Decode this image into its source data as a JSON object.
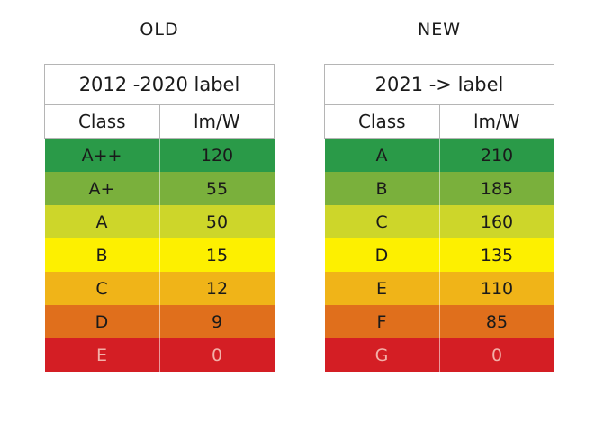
{
  "old": {
    "heading": "OLD",
    "table_title": "2012 -2020 label",
    "headers": [
      "Class",
      "lm/W"
    ],
    "rows": [
      {
        "class": "A++",
        "value": "120",
        "color": "#2a9a48",
        "text_color": "#1a1a1a"
      },
      {
        "class": "A+",
        "value": "55",
        "color": "#7ab03c",
        "text_color": "#1a1a1a"
      },
      {
        "class": "A",
        "value": "50",
        "color": "#cdd62a",
        "text_color": "#1a1a1a"
      },
      {
        "class": "B",
        "value": "15",
        "color": "#fdf000",
        "text_color": "#1a1a1a"
      },
      {
        "class": "C",
        "value": "12",
        "color": "#f0b418",
        "text_color": "#1a1a1a"
      },
      {
        "class": "D",
        "value": "9",
        "color": "#e06f1c",
        "text_color": "#1a1a1a"
      },
      {
        "class": "E",
        "value": "0",
        "color": "#d41e24",
        "text_color": "#f3b0a8"
      }
    ]
  },
  "new": {
    "heading": "NEW",
    "table_title": "2021 -> label",
    "headers": [
      "Class",
      "lm/W"
    ],
    "rows": [
      {
        "class": "A",
        "value": "210",
        "color": "#2a9a48",
        "text_color": "#1a1a1a"
      },
      {
        "class": "B",
        "value": "185",
        "color": "#7ab03c",
        "text_color": "#1a1a1a"
      },
      {
        "class": "C",
        "value": "160",
        "color": "#cdd62a",
        "text_color": "#1a1a1a"
      },
      {
        "class": "D",
        "value": "135",
        "color": "#fdf000",
        "text_color": "#1a1a1a"
      },
      {
        "class": "E",
        "value": "110",
        "color": "#f0b418",
        "text_color": "#1a1a1a"
      },
      {
        "class": "F",
        "value": "85",
        "color": "#e06f1c",
        "text_color": "#1a1a1a"
      },
      {
        "class": "G",
        "value": "0",
        "color": "#d41e24",
        "text_color": "#f3b0a8"
      }
    ]
  }
}
